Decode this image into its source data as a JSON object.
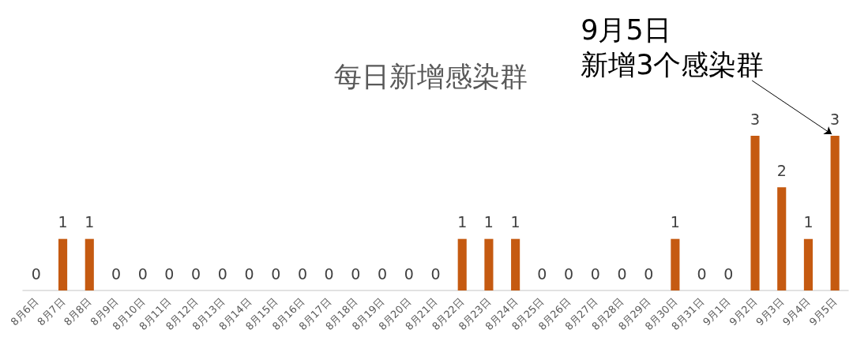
{
  "chart_data": {
    "type": "bar",
    "title": "每日新增感染群",
    "categories": [
      "8月6日",
      "8月7日",
      "8月8日",
      "8月9日",
      "8月10日",
      "8月11日",
      "8月12日",
      "8月13日",
      "8月14日",
      "8月15日",
      "8月16日",
      "8月17日",
      "8月18日",
      "8月19日",
      "8月20日",
      "8月21日",
      "8月22日",
      "8月23日",
      "8月24日",
      "8月25日",
      "8月26日",
      "8月27日",
      "8月28日",
      "8月29日",
      "8月30日",
      "8月31日",
      "9月1日",
      "9月2日",
      "9月3日",
      "9月4日",
      "9月5日"
    ],
    "values": [
      0,
      1,
      1,
      0,
      0,
      0,
      0,
      0,
      0,
      0,
      0,
      0,
      0,
      0,
      0,
      0,
      1,
      1,
      1,
      0,
      0,
      0,
      0,
      0,
      1,
      0,
      0,
      3,
      2,
      1,
      3
    ],
    "color": "#c55a11",
    "data_labels": true,
    "annotations": [
      "9月5日",
      {
        "text": "新增3个感染群",
        "x": "9月5日",
        "y": 3
      }
    ]
  }
}
